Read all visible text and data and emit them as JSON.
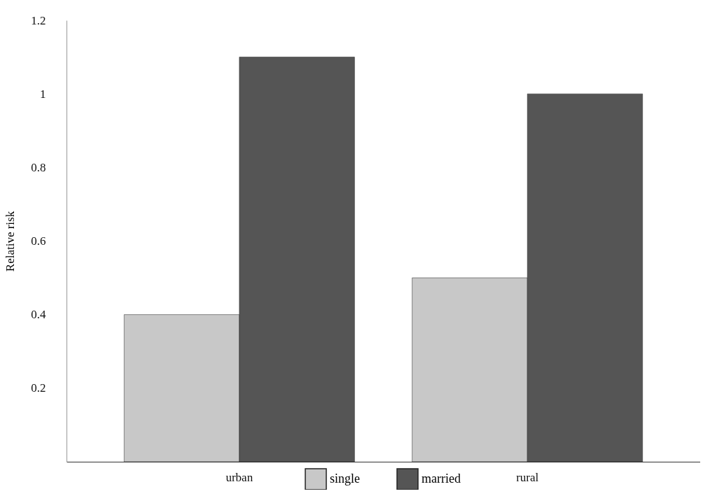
{
  "chart_data": {
    "type": "bar",
    "ylabel": "Relative risk",
    "categories": [
      "urban",
      "rural"
    ],
    "series": [
      {
        "name": "single",
        "color": "#c8c8c8",
        "values": [
          0.4,
          0.5
        ]
      },
      {
        "name": "married",
        "color": "#555555",
        "values": [
          1.1,
          1.0
        ]
      }
    ],
    "ylim": [
      0,
      1.2
    ],
    "yticks": [
      0.2,
      0.4,
      0.6,
      0.8,
      1,
      1.2
    ],
    "grid": false,
    "legend": "bottom"
  }
}
